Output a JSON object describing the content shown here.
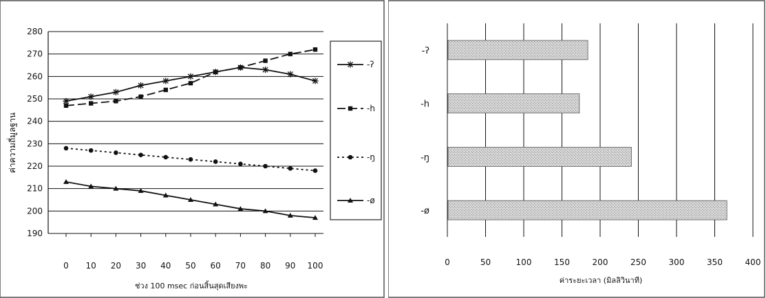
{
  "chart_data": [
    {
      "type": "line",
      "xlabel": "ช่วง 100 msec ก่อนสิ้นสุดเสียงพะ",
      "ylabel": "ค่าความถี่มูลฐาน",
      "x": [
        0,
        10,
        20,
        30,
        40,
        50,
        60,
        70,
        80,
        90,
        100
      ],
      "xticks": [
        "0",
        "10",
        "20",
        "30",
        "40",
        "50",
        "60",
        "70",
        "80",
        "90",
        "100"
      ],
      "yticks": [
        "190",
        "200",
        "210",
        "220",
        "230",
        "240",
        "250",
        "260",
        "270",
        "280"
      ],
      "ylim": [
        190,
        280
      ],
      "grid": "horizontal",
      "legend_position": "right",
      "series": [
        {
          "name": "-ʔ",
          "marker": "asterisk",
          "dash": "solid",
          "values": [
            249,
            251,
            253,
            256,
            258,
            260,
            262,
            264,
            263,
            261,
            258
          ]
        },
        {
          "name": "-h",
          "marker": "square",
          "dash": "long-dash",
          "values": [
            247,
            248,
            249,
            251,
            254,
            257,
            262,
            264,
            267,
            270,
            272
          ]
        },
        {
          "name": "-ŋ",
          "marker": "circle",
          "dash": "dotted",
          "values": [
            228,
            227,
            226,
            225,
            224,
            223,
            222,
            221,
            220,
            219,
            218
          ]
        },
        {
          "name": "-ø",
          "marker": "triangle",
          "dash": "solid",
          "values": [
            213,
            211,
            210,
            209,
            207,
            205,
            203,
            201,
            200,
            198,
            197
          ]
        }
      ]
    },
    {
      "type": "bar",
      "orientation": "horizontal",
      "categories": [
        "-ʔ",
        "-h",
        "-ŋ",
        "-ø"
      ],
      "values": [
        183,
        172,
        240,
        365
      ],
      "xlabel": "ค่าระยะเวลา (มิลลิวินาที)",
      "xticks": [
        "0",
        "50",
        "100",
        "150",
        "200",
        "250",
        "300",
        "350",
        "400"
      ],
      "xlim": [
        0,
        400
      ],
      "grid": "vertical",
      "bar_fill": "#c9c9c9"
    }
  ],
  "colors": {
    "line": "#111111",
    "grid": "#111111",
    "bar": "#c9c9c9",
    "frame": "#333333"
  }
}
